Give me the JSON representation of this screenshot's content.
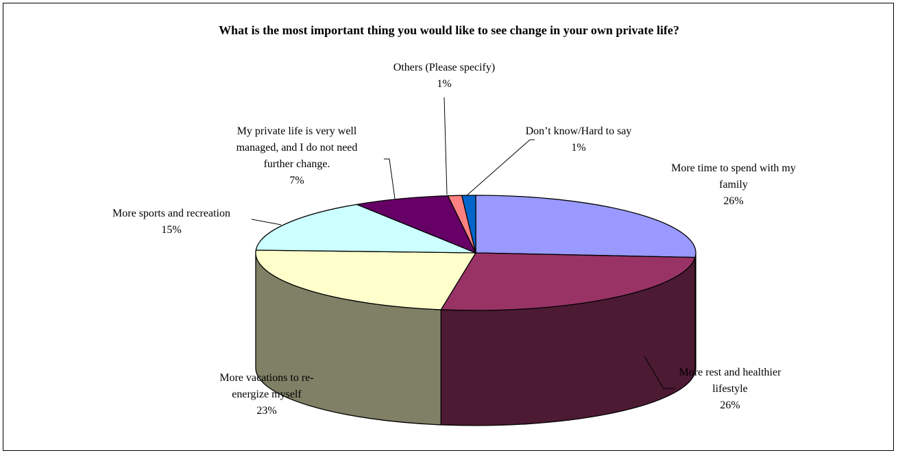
{
  "chart_data": {
    "type": "pie",
    "title": "What is the most important thing you would like to see change in your own private life?",
    "slices": [
      {
        "label_lines": [
          "More time to spend with my",
          "family"
        ],
        "value": 26,
        "pct_label": "26%",
        "color": "#9999ff",
        "side_color": "#4d4d80"
      },
      {
        "label_lines": [
          "More rest and healthier",
          "lifestyle"
        ],
        "value": 26,
        "pct_label": "26%",
        "color": "#993366",
        "side_color": "#4c1a33"
      },
      {
        "label_lines": [
          "More vacations to re-",
          "energize myself"
        ],
        "value": 23,
        "pct_label": "23%",
        "color": "#ffffcc",
        "side_color": "#808066"
      },
      {
        "label_lines": [
          "More sports and recreation"
        ],
        "value": 15,
        "pct_label": "15%",
        "color": "#ccffff",
        "side_color": "#668080"
      },
      {
        "label_lines": [
          "My private life is very well",
          "managed, and I do not need",
          "further change."
        ],
        "value": 7,
        "pct_label": "7%",
        "color": "#660066",
        "side_color": "#330033"
      },
      {
        "label_lines": [
          "Others (Please specify)"
        ],
        "value": 1,
        "pct_label": "1%",
        "color": "#ff8080",
        "side_color": "#804040"
      },
      {
        "label_lines": [
          "Don’t know/Hard to say"
        ],
        "value": 1,
        "pct_label": "1%",
        "color": "#0066cc",
        "side_color": "#003366"
      }
    ]
  }
}
